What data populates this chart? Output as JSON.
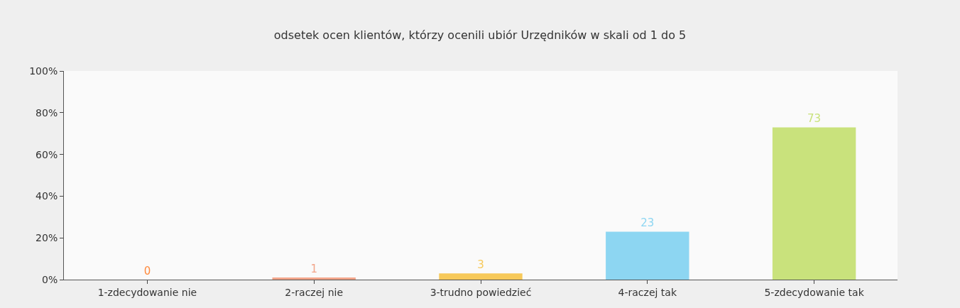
{
  "chart_data": {
    "type": "bar",
    "title": "odsetek ocen klientów, którzy ocenili ubiór Urzędników w skali od 1 do 5",
    "categories": [
      "1-zdecydowanie nie",
      "2-raczej nie",
      "3-trudno powiedzieć",
      "4-raczej tak",
      "5-zdecydowanie tak"
    ],
    "values": [
      0,
      1,
      3,
      23,
      73
    ],
    "colors": [
      "#ff8a3d",
      "#f2a58a",
      "#f7c95a",
      "#8dd6f2",
      "#c9e27c"
    ],
    "ylim": [
      0,
      100
    ],
    "yticks": [
      {
        "value": 0,
        "label": "0%"
      },
      {
        "value": 20,
        "label": "20%"
      },
      {
        "value": 40,
        "label": "40%"
      },
      {
        "value": 60,
        "label": "60%"
      },
      {
        "value": 80,
        "label": "80%"
      },
      {
        "value": 100,
        "label": "100%"
      }
    ],
    "data_labels": true
  }
}
